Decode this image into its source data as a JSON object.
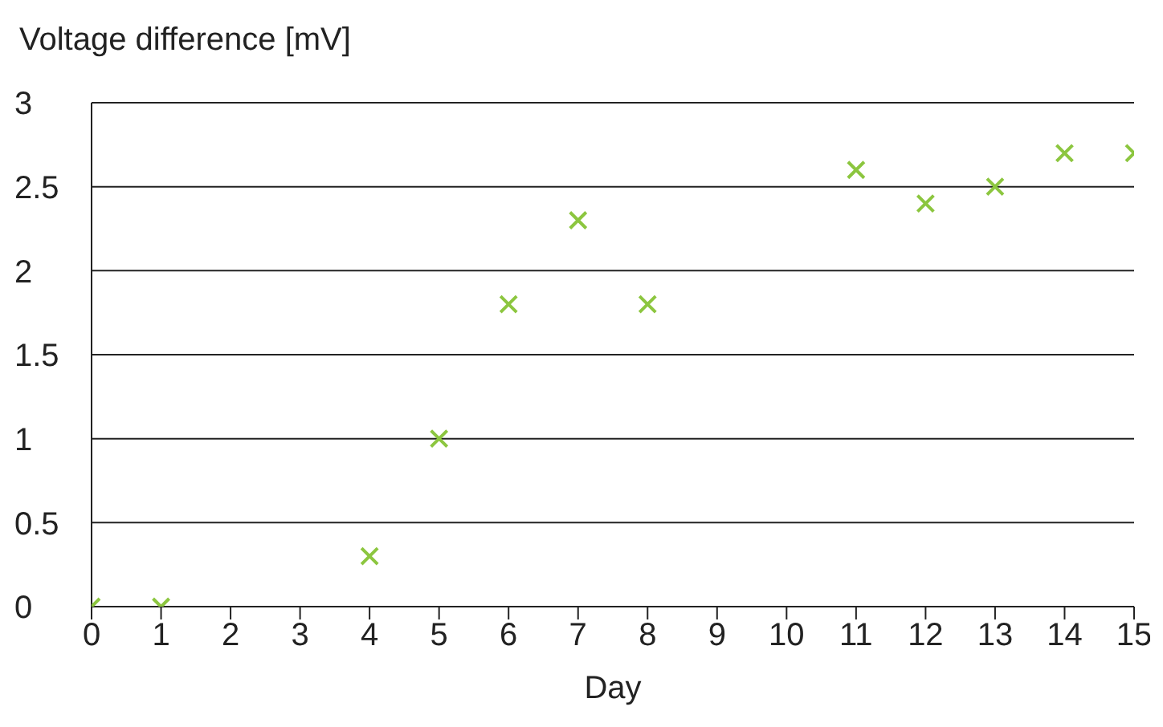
{
  "chart_data": {
    "type": "scatter",
    "ylabel": "Voltage difference [mV]",
    "xlabel": "Day",
    "x": [
      0,
      1,
      4,
      5,
      6,
      7,
      8,
      11,
      12,
      13,
      14,
      15
    ],
    "series": [
      {
        "color": "#8cc63f",
        "values": [
          0,
          0,
          0.3,
          1.0,
          1.8,
          2.3,
          1.8,
          2.6,
          2.4,
          2.5,
          2.7,
          2.7
        ]
      }
    ],
    "xlim": [
      0,
      15
    ],
    "xticks": [
      0,
      1,
      2,
      3,
      4,
      5,
      6,
      7,
      8,
      9,
      10,
      11,
      12,
      13,
      14,
      15
    ],
    "ylim": [
      0,
      3
    ],
    "yticks": [
      0,
      0.5,
      1,
      1.5,
      2,
      2.5,
      3
    ],
    "grid": "y",
    "marker": "cross",
    "legend": false
  }
}
